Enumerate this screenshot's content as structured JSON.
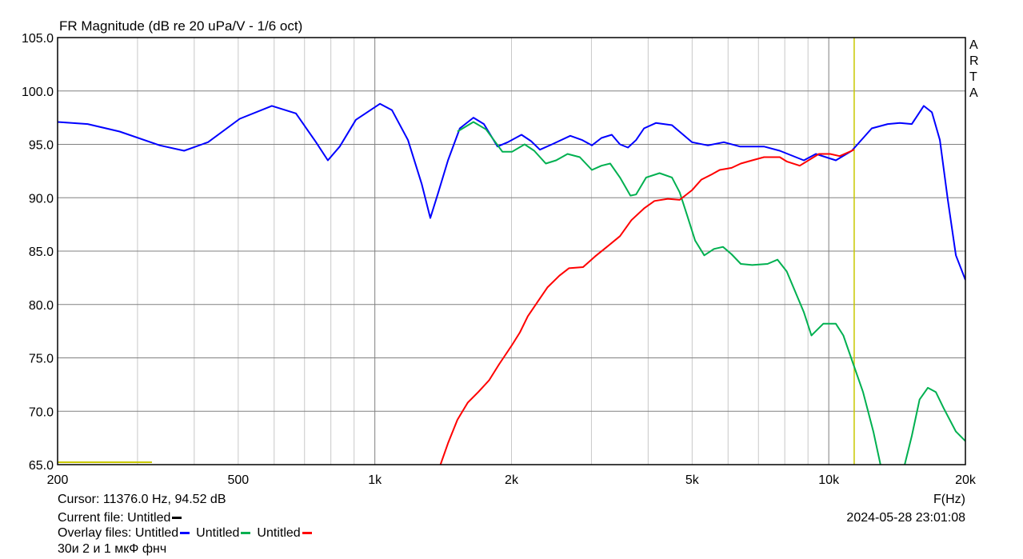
{
  "chart_data": {
    "type": "line",
    "title": "FR Magnitude (dB re 20 uPa/V - 1/6 oct)",
    "xlabel": "F(Hz)",
    "ylabel": "",
    "xscale": "log",
    "xlim": [
      200,
      20000
    ],
    "ylim": [
      65,
      105
    ],
    "grid": true,
    "xticks": [
      {
        "v": 200,
        "label": "200"
      },
      {
        "v": 500,
        "label": "500"
      },
      {
        "v": 1000,
        "label": "1k"
      },
      {
        "v": 2000,
        "label": "2k"
      },
      {
        "v": 5000,
        "label": "5k"
      },
      {
        "v": 10000,
        "label": "10k"
      },
      {
        "v": 20000,
        "label": "20k"
      }
    ],
    "yticks": [
      {
        "v": 65,
        "label": "65.0"
      },
      {
        "v": 70,
        "label": "70.0"
      },
      {
        "v": 75,
        "label": "75.0"
      },
      {
        "v": 80,
        "label": "80.0"
      },
      {
        "v": 85,
        "label": "85.0"
      },
      {
        "v": 90,
        "label": "90.0"
      },
      {
        "v": 95,
        "label": "95.0"
      },
      {
        "v": 100,
        "label": "100.0"
      },
      {
        "v": 105,
        "label": "105.0"
      }
    ],
    "cursor_hz": 11376,
    "series": [
      {
        "color": "#0000ff",
        "points": [
          [
            200,
            97.1
          ],
          [
            233,
            96.9
          ],
          [
            274,
            96.2
          ],
          [
            336,
            94.9
          ],
          [
            380,
            94.4
          ],
          [
            429,
            95.2
          ],
          [
            504,
            97.4
          ],
          [
            593,
            98.6
          ],
          [
            670,
            97.9
          ],
          [
            742,
            95.2
          ],
          [
            788,
            93.5
          ],
          [
            837,
            94.8
          ],
          [
            908,
            97.3
          ],
          [
            1026,
            98.8
          ],
          [
            1091,
            98.2
          ],
          [
            1183,
            95.4
          ],
          [
            1268,
            91.3
          ],
          [
            1325,
            88.1
          ],
          [
            1380,
            90.5
          ],
          [
            1449,
            93.5
          ],
          [
            1539,
            96.5
          ],
          [
            1649,
            97.5
          ],
          [
            1739,
            96.9
          ],
          [
            1863,
            94.8
          ],
          [
            1963,
            95.2
          ],
          [
            2104,
            95.9
          ],
          [
            2209,
            95.3
          ],
          [
            2310,
            94.5
          ],
          [
            2456,
            95.0
          ],
          [
            2695,
            95.8
          ],
          [
            2865,
            95.4
          ],
          [
            3007,
            94.9
          ],
          [
            3157,
            95.6
          ],
          [
            3327,
            95.9
          ],
          [
            3467,
            95.0
          ],
          [
            3610,
            94.7
          ],
          [
            3761,
            95.4
          ],
          [
            3917,
            96.5
          ],
          [
            4160,
            97.0
          ],
          [
            4513,
            96.8
          ],
          [
            4995,
            95.2
          ],
          [
            5417,
            94.9
          ],
          [
            5873,
            95.2
          ],
          [
            6370,
            94.8
          ],
          [
            7194,
            94.8
          ],
          [
            7800,
            94.4
          ],
          [
            8811,
            93.5
          ],
          [
            9364,
            94.1
          ],
          [
            10364,
            93.5
          ],
          [
            11239,
            94.4
          ],
          [
            12436,
            96.5
          ],
          [
            13490,
            96.9
          ],
          [
            14340,
            97.0
          ],
          [
            15240,
            96.9
          ],
          [
            16190,
            98.6
          ],
          [
            16870,
            98.0
          ],
          [
            17570,
            95.4
          ],
          [
            18290,
            89.8
          ],
          [
            19060,
            84.6
          ],
          [
            20000,
            82.3
          ]
        ]
      },
      {
        "color": "#00b050",
        "points": [
          [
            1520,
            96.2
          ],
          [
            1649,
            97.1
          ],
          [
            1758,
            96.4
          ],
          [
            1910,
            94.3
          ],
          [
            2005,
            94.3
          ],
          [
            2138,
            95.0
          ],
          [
            2244,
            94.4
          ],
          [
            2380,
            93.2
          ],
          [
            2508,
            93.5
          ],
          [
            2658,
            94.1
          ],
          [
            2828,
            93.8
          ],
          [
            3007,
            92.6
          ],
          [
            3157,
            93.0
          ],
          [
            3300,
            93.2
          ],
          [
            3467,
            91.9
          ],
          [
            3656,
            90.2
          ],
          [
            3761,
            90.3
          ],
          [
            3960,
            91.9
          ],
          [
            4238,
            92.3
          ],
          [
            4513,
            91.9
          ],
          [
            4695,
            90.5
          ],
          [
            4880,
            88.3
          ],
          [
            5075,
            86.0
          ],
          [
            5317,
            84.6
          ],
          [
            5585,
            85.2
          ],
          [
            5850,
            85.4
          ],
          [
            6110,
            84.7
          ],
          [
            6400,
            83.8
          ],
          [
            6780,
            83.7
          ],
          [
            7330,
            83.8
          ],
          [
            7710,
            84.2
          ],
          [
            8080,
            83.1
          ],
          [
            8810,
            79.3
          ],
          [
            9160,
            77.1
          ],
          [
            9725,
            78.2
          ],
          [
            10364,
            78.2
          ],
          [
            10770,
            77.1
          ],
          [
            11330,
            74.4
          ],
          [
            11900,
            71.8
          ],
          [
            12540,
            68.1
          ],
          [
            13000,
            65.0
          ],
          [
            13490,
            62.0
          ],
          [
            14340,
            62.0
          ],
          [
            14700,
            65.0
          ],
          [
            15240,
            67.7
          ],
          [
            15850,
            71.1
          ],
          [
            16530,
            72.2
          ],
          [
            17210,
            71.8
          ],
          [
            17900,
            70.3
          ],
          [
            19060,
            68.1
          ],
          [
            20000,
            67.2
          ]
        ]
      },
      {
        "color": "#ff0000",
        "points": [
          [
            1364,
            63.6
          ],
          [
            1395,
            65.0
          ],
          [
            1449,
            67.0
          ],
          [
            1520,
            69.2
          ],
          [
            1601,
            70.8
          ],
          [
            1690,
            71.8
          ],
          [
            1785,
            72.9
          ],
          [
            1878,
            74.4
          ],
          [
            2005,
            76.2
          ],
          [
            2088,
            77.4
          ],
          [
            2173,
            78.9
          ],
          [
            2279,
            80.2
          ],
          [
            2400,
            81.6
          ],
          [
            2550,
            82.7
          ],
          [
            2676,
            83.4
          ],
          [
            2876,
            83.5
          ],
          [
            3055,
            84.5
          ],
          [
            3245,
            85.4
          ],
          [
            3467,
            86.4
          ],
          [
            3674,
            87.9
          ],
          [
            3917,
            89.0
          ],
          [
            4130,
            89.7
          ],
          [
            4420,
            89.9
          ],
          [
            4695,
            89.8
          ],
          [
            4995,
            90.7
          ],
          [
            5240,
            91.7
          ],
          [
            5530,
            92.2
          ],
          [
            5750,
            92.6
          ],
          [
            6110,
            92.8
          ],
          [
            6400,
            93.2
          ],
          [
            6780,
            93.5
          ],
          [
            7200,
            93.8
          ],
          [
            7800,
            93.8
          ],
          [
            8080,
            93.4
          ],
          [
            8630,
            93.0
          ],
          [
            9510,
            94.1
          ],
          [
            10070,
            94.1
          ],
          [
            10570,
            93.9
          ],
          [
            11239,
            94.4
          ],
          [
            11376,
            94.52
          ]
        ]
      }
    ]
  },
  "side_label": [
    "A",
    "R",
    "T",
    "A"
  ],
  "footer": {
    "cursor": "Cursor: 11376.0 Hz, 94.52 dB",
    "current_file": "Current file: Untitled",
    "current_color": "#000000",
    "overlay_prefix": "Overlay files: Untitled",
    "overlay_2": "Untitled",
    "overlay_3": "Untitled",
    "note": "30и 2 и 1 мкФ фнч",
    "datetime": "2024-05-28  23:01:08"
  },
  "colors": {
    "cursor": "#c8c800",
    "grid": "#c8c8c8",
    "grid_major": "#808080"
  }
}
